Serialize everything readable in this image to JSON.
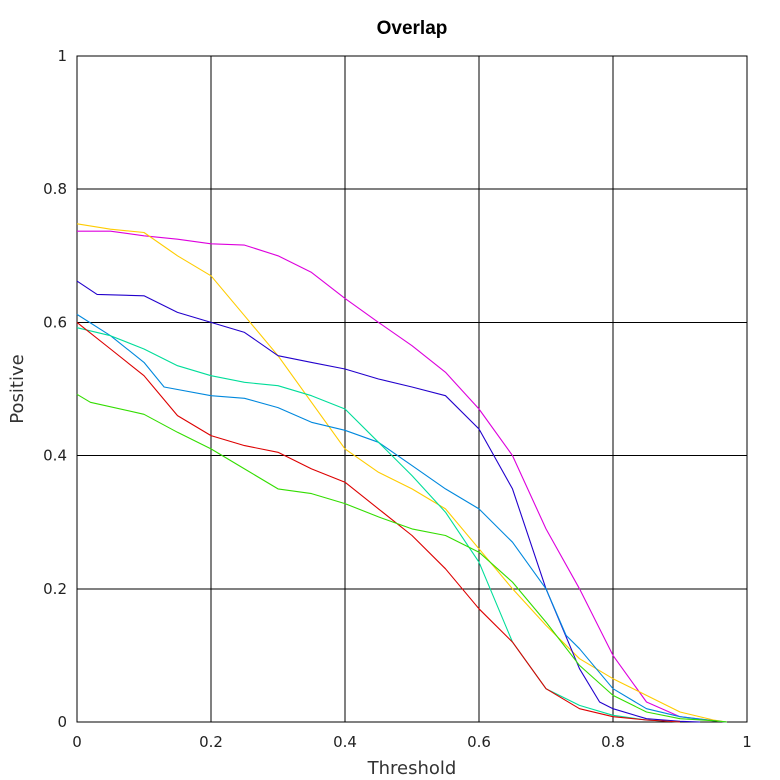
{
  "chart_data": {
    "type": "line",
    "title": "Overlap",
    "xlabel": "Threshold",
    "ylabel": "Positive",
    "xlim": [
      0,
      1
    ],
    "ylim": [
      0,
      1
    ],
    "xticks": [
      0,
      0.2,
      0.4,
      0.6,
      0.8,
      1
    ],
    "yticks": [
      0,
      0.2,
      0.4,
      0.6,
      0.8,
      1
    ],
    "xtick_labels": [
      "0",
      "0.2",
      "0.4",
      "0.6",
      "0.8",
      "1"
    ],
    "ytick_labels": [
      "0",
      "0.2",
      "0.4",
      "0.6",
      "0.8",
      "1"
    ],
    "grid": true,
    "series": [
      {
        "color": "#dd00dd",
        "points": [
          [
            0,
            0.737
          ],
          [
            0.05,
            0.737
          ],
          [
            0.1,
            0.73
          ],
          [
            0.15,
            0.725
          ],
          [
            0.2,
            0.718
          ],
          [
            0.25,
            0.716
          ],
          [
            0.3,
            0.7
          ],
          [
            0.35,
            0.675
          ],
          [
            0.4,
            0.636
          ],
          [
            0.45,
            0.6
          ],
          [
            0.5,
            0.565
          ],
          [
            0.55,
            0.525
          ],
          [
            0.6,
            0.47
          ],
          [
            0.65,
            0.4
          ],
          [
            0.7,
            0.29
          ],
          [
            0.75,
            0.2
          ],
          [
            0.8,
            0.1
          ],
          [
            0.85,
            0.03
          ],
          [
            0.9,
            0.008
          ],
          [
            0.95,
            0.002
          ],
          [
            0.97,
            0
          ]
        ]
      },
      {
        "color": "#ffcc00",
        "points": [
          [
            0,
            0.748
          ],
          [
            0.05,
            0.74
          ],
          [
            0.1,
            0.735
          ],
          [
            0.15,
            0.7
          ],
          [
            0.2,
            0.67
          ],
          [
            0.25,
            0.61
          ],
          [
            0.3,
            0.55
          ],
          [
            0.35,
            0.48
          ],
          [
            0.4,
            0.41
          ],
          [
            0.45,
            0.375
          ],
          [
            0.5,
            0.35
          ],
          [
            0.55,
            0.32
          ],
          [
            0.6,
            0.26
          ],
          [
            0.65,
            0.2
          ],
          [
            0.7,
            0.145
          ],
          [
            0.75,
            0.095
          ],
          [
            0.8,
            0.065
          ],
          [
            0.85,
            0.04
          ],
          [
            0.9,
            0.015
          ],
          [
            0.95,
            0.003
          ],
          [
            0.97,
            0
          ]
        ]
      },
      {
        "color": "#2200cc",
        "points": [
          [
            0,
            0.662
          ],
          [
            0.03,
            0.642
          ],
          [
            0.1,
            0.64
          ],
          [
            0.15,
            0.615
          ],
          [
            0.2,
            0.6
          ],
          [
            0.25,
            0.585
          ],
          [
            0.3,
            0.55
          ],
          [
            0.35,
            0.54
          ],
          [
            0.4,
            0.53
          ],
          [
            0.45,
            0.515
          ],
          [
            0.5,
            0.503
          ],
          [
            0.55,
            0.49
          ],
          [
            0.6,
            0.44
          ],
          [
            0.65,
            0.35
          ],
          [
            0.7,
            0.2
          ],
          [
            0.75,
            0.08
          ],
          [
            0.78,
            0.03
          ],
          [
            0.8,
            0.02
          ],
          [
            0.85,
            0.005
          ],
          [
            0.9,
            0.001
          ],
          [
            0.93,
            0
          ]
        ]
      },
      {
        "color": "#0088dd",
        "points": [
          [
            0,
            0.612
          ],
          [
            0.05,
            0.58
          ],
          [
            0.1,
            0.54
          ],
          [
            0.13,
            0.503
          ],
          [
            0.2,
            0.49
          ],
          [
            0.25,
            0.486
          ],
          [
            0.3,
            0.472
          ],
          [
            0.35,
            0.45
          ],
          [
            0.4,
            0.438
          ],
          [
            0.45,
            0.42
          ],
          [
            0.5,
            0.385
          ],
          [
            0.55,
            0.35
          ],
          [
            0.6,
            0.32
          ],
          [
            0.65,
            0.27
          ],
          [
            0.7,
            0.2
          ],
          [
            0.73,
            0.13
          ],
          [
            0.75,
            0.11
          ],
          [
            0.8,
            0.05
          ],
          [
            0.85,
            0.02
          ],
          [
            0.9,
            0.008
          ],
          [
            0.95,
            0.002
          ],
          [
            0.97,
            0
          ]
        ]
      },
      {
        "color": "#00dd99",
        "points": [
          [
            0,
            0.592
          ],
          [
            0.05,
            0.58
          ],
          [
            0.1,
            0.56
          ],
          [
            0.15,
            0.535
          ],
          [
            0.2,
            0.52
          ],
          [
            0.25,
            0.51
          ],
          [
            0.3,
            0.505
          ],
          [
            0.35,
            0.49
          ],
          [
            0.4,
            0.47
          ],
          [
            0.45,
            0.42
          ],
          [
            0.5,
            0.37
          ],
          [
            0.55,
            0.315
          ],
          [
            0.6,
            0.24
          ],
          [
            0.65,
            0.12
          ],
          [
            0.7,
            0.05
          ],
          [
            0.75,
            0.025
          ],
          [
            0.8,
            0.01
          ],
          [
            0.85,
            0.003
          ],
          [
            0.9,
            0
          ]
        ]
      },
      {
        "color": "#dd0000",
        "points": [
          [
            0,
            0.6
          ],
          [
            0.05,
            0.56
          ],
          [
            0.1,
            0.52
          ],
          [
            0.15,
            0.46
          ],
          [
            0.2,
            0.43
          ],
          [
            0.25,
            0.415
          ],
          [
            0.3,
            0.405
          ],
          [
            0.35,
            0.38
          ],
          [
            0.4,
            0.36
          ],
          [
            0.45,
            0.32
          ],
          [
            0.5,
            0.28
          ],
          [
            0.55,
            0.23
          ],
          [
            0.6,
            0.17
          ],
          [
            0.65,
            0.12
          ],
          [
            0.7,
            0.05
          ],
          [
            0.75,
            0.02
          ],
          [
            0.8,
            0.008
          ],
          [
            0.85,
            0.003
          ],
          [
            0.9,
            0
          ]
        ]
      },
      {
        "color": "#33dd00",
        "points": [
          [
            0,
            0.492
          ],
          [
            0.02,
            0.48
          ],
          [
            0.1,
            0.462
          ],
          [
            0.15,
            0.435
          ],
          [
            0.2,
            0.41
          ],
          [
            0.25,
            0.38
          ],
          [
            0.3,
            0.35
          ],
          [
            0.35,
            0.343
          ],
          [
            0.4,
            0.328
          ],
          [
            0.45,
            0.308
          ],
          [
            0.5,
            0.29
          ],
          [
            0.55,
            0.28
          ],
          [
            0.6,
            0.255
          ],
          [
            0.65,
            0.21
          ],
          [
            0.7,
            0.15
          ],
          [
            0.75,
            0.085
          ],
          [
            0.8,
            0.04
          ],
          [
            0.85,
            0.015
          ],
          [
            0.9,
            0.005
          ],
          [
            0.95,
            0.002
          ],
          [
            0.97,
            0
          ]
        ]
      }
    ]
  }
}
